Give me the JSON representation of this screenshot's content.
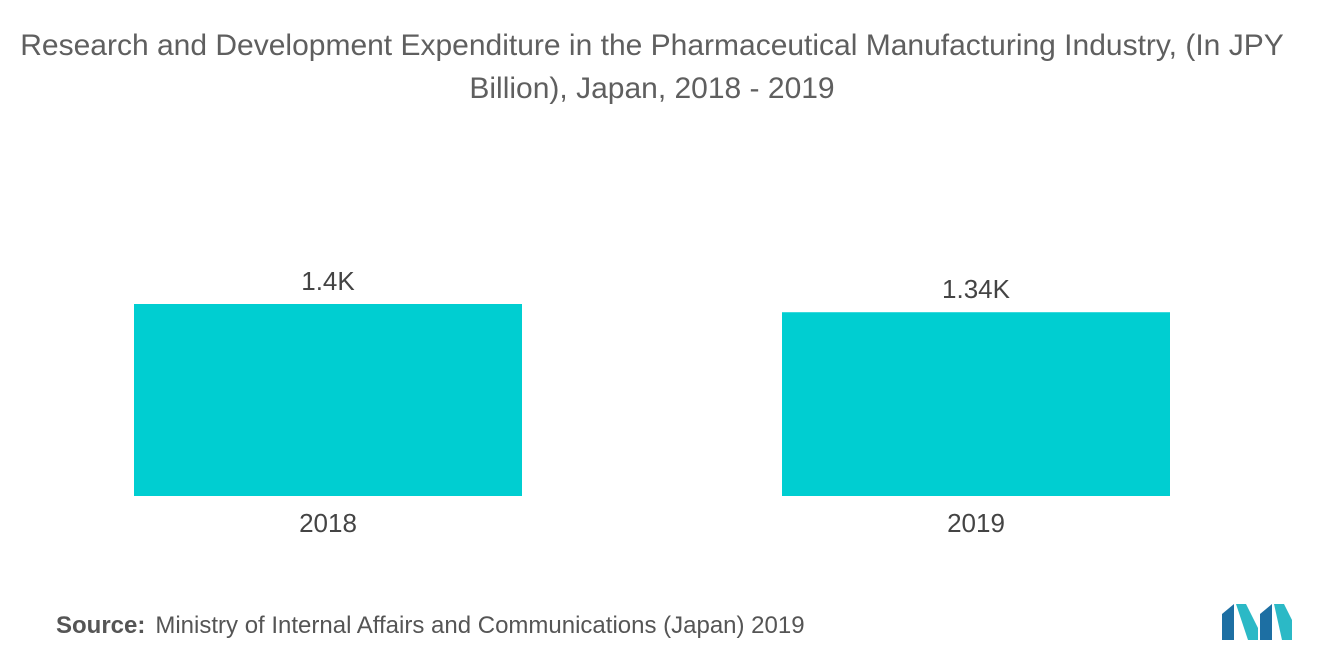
{
  "chart_data": {
    "type": "bar",
    "title": "Research and Development Expenditure in the Pharmaceutical Manufacturing Industry, (In JPY Billion), Japan, 2018 - 2019",
    "categories": [
      "2018",
      "2019"
    ],
    "values": [
      1400,
      1340
    ],
    "value_labels": [
      "1.4K",
      "1.34K"
    ],
    "xlabel": "",
    "ylabel": "",
    "ylim": [
      0,
      1400
    ],
    "grid": false,
    "legend": "none",
    "bar_color": "#00CED1"
  },
  "footer": {
    "source_label": "Source:",
    "source_text": "Ministry of Internal Affairs and Communications (Japan) 2019"
  },
  "logo": {
    "icon": "mordor-intelligence-logo-icon",
    "colors": [
      "#1D6FA3",
      "#2BB9C6"
    ]
  }
}
